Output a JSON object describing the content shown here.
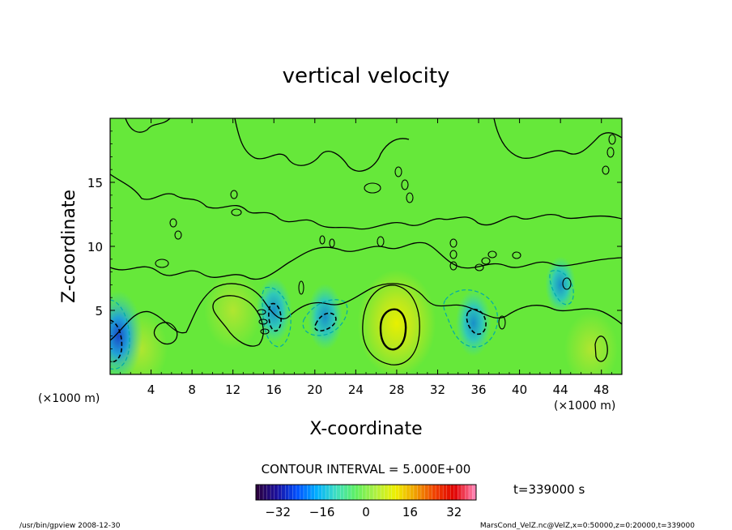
{
  "chart_data": {
    "type": "heatmap",
    "title": "vertical velocity",
    "xlabel": "X-coordinate",
    "ylabel": "Z-coordinate",
    "x_unit_left": "(×1000 m)",
    "x_unit_right": "(×1000 m)",
    "xlim": [
      0,
      50
    ],
    "ylim": [
      0,
      20
    ],
    "x_ticks": [
      4,
      8,
      12,
      16,
      20,
      24,
      28,
      32,
      36,
      40,
      44,
      48
    ],
    "y_ticks": [
      5,
      10,
      15
    ],
    "contour_interval": "CONTOUR INTERVAL = 5.000E+00",
    "time_label": "t=339000 s",
    "colorbar": {
      "range": [
        -40,
        40
      ],
      "ticks": [
        -32,
        -16,
        0,
        16,
        32
      ],
      "colors": [
        "#2a0040",
        "#1a10a0",
        "#0050ff",
        "#00b0ff",
        "#40e0c0",
        "#60f060",
        "#b0f040",
        "#f0f000",
        "#f0a000",
        "#f04000",
        "#e00000",
        "#ff80b0"
      ]
    },
    "features": [
      {
        "kind": "updraft",
        "x": 28,
        "z": 4,
        "value": 12
      },
      {
        "kind": "updraft",
        "x": 12,
        "z": 5,
        "value": 6
      },
      {
        "kind": "updraft",
        "x": 3,
        "z": 2,
        "value": 5
      },
      {
        "kind": "updraft",
        "x": 47,
        "z": 2,
        "value": 5
      },
      {
        "kind": "downdraft",
        "x": 0.8,
        "z": 3,
        "value": -20
      },
      {
        "kind": "downdraft",
        "x": 16,
        "z": 5,
        "value": -10
      },
      {
        "kind": "downdraft",
        "x": 21,
        "z": 4.5,
        "value": -10
      },
      {
        "kind": "downdraft",
        "x": 35.5,
        "z": 4,
        "value": -10
      },
      {
        "kind": "downdraft",
        "x": 44,
        "z": 7,
        "value": -6
      }
    ]
  },
  "footer": {
    "left": "/usr/bin/gpview   2008-12-30",
    "right": "MarsCond_VelZ.nc@VelZ,x=0:50000,z=0:20000,t=339000"
  }
}
